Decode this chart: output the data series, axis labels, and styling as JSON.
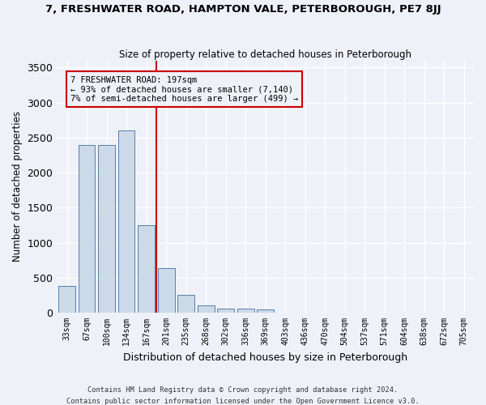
{
  "title": "7, FRESHWATER ROAD, HAMPTON VALE, PETERBOROUGH, PE7 8JJ",
  "subtitle": "Size of property relative to detached houses in Peterborough",
  "xlabel": "Distribution of detached houses by size in Peterborough",
  "ylabel": "Number of detached properties",
  "footer_line1": "Contains HM Land Registry data © Crown copyright and database right 2024.",
  "footer_line2": "Contains public sector information licensed under the Open Government Licence v3.0.",
  "bins": [
    "33sqm",
    "67sqm",
    "100sqm",
    "134sqm",
    "167sqm",
    "201sqm",
    "235sqm",
    "268sqm",
    "302sqm",
    "336sqm",
    "369sqm",
    "403sqm",
    "436sqm",
    "470sqm",
    "504sqm",
    "537sqm",
    "571sqm",
    "604sqm",
    "638sqm",
    "672sqm",
    "705sqm"
  ],
  "values": [
    380,
    2390,
    2390,
    2600,
    1250,
    640,
    260,
    100,
    60,
    55,
    45,
    0,
    0,
    0,
    0,
    0,
    0,
    0,
    0,
    0,
    0
  ],
  "bar_color": "#ccd9e8",
  "bar_edge_color": "#5580aa",
  "annotation_line1": "7 FRESHWATER ROAD: 197sqm",
  "annotation_line2": "← 93% of detached houses are smaller (7,140)",
  "annotation_line3": "7% of semi-detached houses are larger (499) →",
  "vline_color": "#cc0000",
  "annotation_box_color": "#cc0000",
  "vline_bin_index": 5,
  "ylim": [
    0,
    3600
  ],
  "yticks": [
    0,
    500,
    1000,
    1500,
    2000,
    2500,
    3000,
    3500
  ],
  "background_color": "#eef2f8"
}
